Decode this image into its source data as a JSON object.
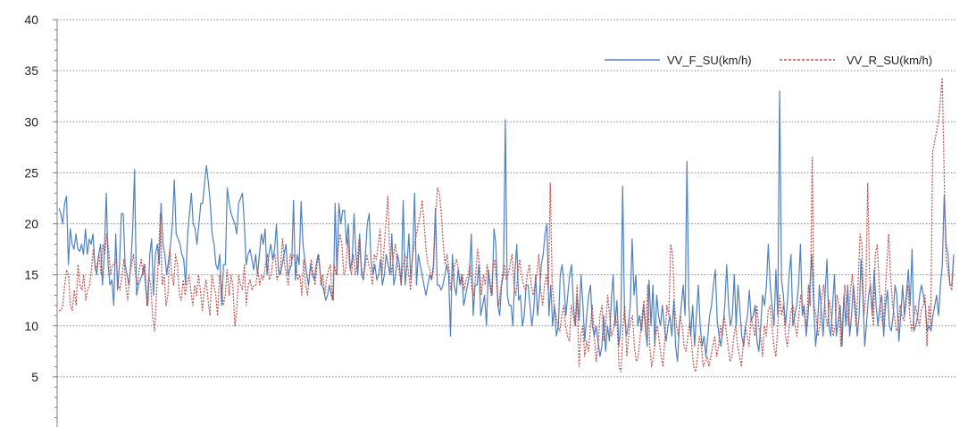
{
  "chart_data": {
    "type": "line",
    "title": "",
    "xlabel": "",
    "ylabel": "",
    "ylim": [
      0,
      40
    ],
    "yticks": [
      5,
      10,
      15,
      20,
      25,
      30,
      35,
      40
    ],
    "grid": "horizontal dotted",
    "legend_position": "top-right",
    "colors": {
      "VV_F_SU": "#4f81bd",
      "VV_R_SU": "#c0504d"
    },
    "series": [
      {
        "name": "VV_F_SU(km/h)",
        "style": "solid",
        "values": [
          21.5,
          21.0,
          20.0,
          22.0,
          22.7,
          16.0,
          19.5,
          18.0,
          17.5,
          19.0,
          17.5,
          17.3,
          18.0,
          17.0,
          19.5,
          17.0,
          18.5,
          18.0,
          19.0,
          16.0,
          15.0,
          17.0,
          18.0,
          14.0,
          17.0,
          23.0,
          16.0,
          14.0,
          14.5,
          12.0,
          19.0,
          13.5,
          16.0,
          21.0,
          21.0,
          16.0,
          15.0,
          14.0,
          16.0,
          19.5,
          25.3,
          13.0,
          14.0,
          14.5,
          15.0,
          16.0,
          13.5,
          12.0,
          17.0,
          18.5,
          13.0,
          17.0,
          18.0,
          16.0,
          22.0,
          18.0,
          17.0,
          15.0,
          16.5,
          18.0,
          20.0,
          24.3,
          19.0,
          18.5,
          18.0,
          17.0,
          16.5,
          14.0,
          19.0,
          21.0,
          23.0,
          20.0,
          19.5,
          18.0,
          20.0,
          22.0,
          22.0,
          24.0,
          25.7,
          24.0,
          22.0,
          19.0,
          18.0,
          16.0,
          15.5,
          17.0,
          12.0,
          16.0,
          16.0,
          23.5,
          22.0,
          21.0,
          20.5,
          20.0,
          19.0,
          22.0,
          22.5,
          23.0,
          20.0,
          16.0,
          17.0,
          17.5,
          16.5,
          15.5,
          17.0,
          15.0,
          17.0,
          19.0,
          18.0,
          19.5,
          15.0,
          17.0,
          18.0,
          16.5,
          17.5,
          20.0,
          15.5,
          15.0,
          16.0,
          17.0,
          18.0,
          15.0,
          15.5,
          16.0,
          22.3,
          14.5,
          17.0,
          16.0,
          22.2,
          18.0,
          16.5,
          15.0,
          14.0,
          16.0,
          15.0,
          14.5,
          16.0,
          17.0,
          15.5,
          14.0,
          13.5,
          12.5,
          13.0,
          14.0,
          13.0,
          12.5,
          22.0,
          15.0,
          22.0,
          20.0,
          21.3,
          21.3,
          18.0,
          20.0,
          15.5,
          16.5,
          21.0,
          17.0,
          15.0,
          19.0,
          15.0,
          14.5,
          17.0,
          20.0,
          21.0,
          16.5,
          15.0,
          16.0,
          14.5,
          15.0,
          16.5,
          14.0,
          15.0,
          17.0,
          16.0,
          15.0,
          19.0,
          14.0,
          15.0,
          17.0,
          16.0,
          14.0,
          22.3,
          14.0,
          16.0,
          19.0,
          14.5,
          17.0,
          23.0,
          14.0,
          17.0,
          16.0,
          15.0,
          14.0,
          13.0,
          14.0,
          15.0,
          14.5,
          16.0,
          21.5,
          14.0,
          14.0,
          13.5,
          14.0,
          15.0,
          16.0,
          15.0,
          9.0,
          17.0,
          14.0,
          13.0,
          15.5,
          14.0,
          15.0,
          12.0,
          13.0,
          14.0,
          15.0,
          19.0,
          11.0,
          14.0,
          14.0,
          16.0,
          11.0,
          12.0,
          13.0,
          10.0,
          15.5,
          14.0,
          13.0,
          19.5,
          18.0,
          12.0,
          11.0,
          14.0,
          15.0,
          30.2,
          13.0,
          12.0,
          12.0,
          10.0,
          15.0,
          18.0,
          12.5,
          13.0,
          10.0,
          11.0,
          14.0,
          14.0,
          12.0,
          10.0,
          11.5,
          15.0,
          11.0,
          13.0,
          16.0,
          17.0,
          19.0,
          20.0,
          11.0,
          14.0,
          10.0,
          12.0,
          9.0,
          10.0,
          15.0,
          16.0,
          14.0,
          11.0,
          13.0,
          15.0,
          16.0,
          12.0,
          10.0,
          13.0,
          10.5,
          15.0,
          12.0,
          8.5,
          11.0,
          13.0,
          14.0,
          10.0,
          9.0,
          10.0,
          8.5,
          7.0,
          8.0,
          11.0,
          7.5,
          10.0,
          8.5,
          12.5,
          15.0,
          10.0,
          12.5,
          8.0,
          10.0,
          23.7,
          11.0,
          9.0,
          10.0,
          12.0,
          18.5,
          13.0,
          15.0,
          10.0,
          11.0,
          9.5,
          12.0,
          10.0,
          8.0,
          14.5,
          10.0,
          14.0,
          8.0,
          13.0,
          11.0,
          10.0,
          12.0,
          10.0,
          8.5,
          10.0,
          11.0,
          9.0,
          12.5,
          8.0,
          6.5,
          10.0,
          12.0,
          14.0,
          11.0,
          26.1,
          12.0,
          9.0,
          12.0,
          8.0,
          11.0,
          14.0,
          10.0,
          8.0,
          9.0,
          7.0,
          9.0,
          11.0,
          12.0,
          14.0,
          15.5,
          10.5,
          9.0,
          8.0,
          10.0,
          12.0,
          16.0,
          12.0,
          10.0,
          11.0,
          15.0,
          10.0,
          14.0,
          11.5,
          9.0,
          8.0,
          10.0,
          11.0,
          13.5,
          10.5,
          11.0,
          12.0,
          8.5,
          7.5,
          10.0,
          13.0,
          12.0,
          14.0,
          18.0,
          14.0,
          12.0,
          10.0,
          15.5,
          11.0,
          33.0,
          14.5,
          13.0,
          10.0,
          12.0,
          15.0,
          17.0,
          10.0,
          11.0,
          12.0,
          14.0,
          18.0,
          11.0,
          12.0,
          9.0,
          11.0,
          14.0,
          17.0,
          12.0,
          8.0,
          10.0,
          14.0,
          11.5,
          9.0,
          13.0,
          16.5,
          10.0,
          9.0,
          12.0,
          15.0,
          9.0,
          10.5,
          12.0,
          8.0,
          13.0,
          10.0,
          14.0,
          9.0,
          11.0,
          14.0,
          12.0,
          9.0,
          11.0,
          16.5,
          13.0,
          8.0,
          10.5,
          13.0,
          14.0,
          11.0,
          15.5,
          12.0,
          10.0,
          12.0,
          13.0,
          9.0,
          12.0,
          13.5,
          10.0,
          9.5,
          11.0,
          14.0,
          13.0,
          8.5,
          11.0,
          14.0,
          11.0,
          13.0,
          15.5,
          12.0,
          17.5,
          9.5,
          10.0,
          11.0,
          13.0,
          14.0,
          13.0,
          12.0,
          9.5,
          10.0,
          9.5,
          11.0,
          12.0,
          13.0,
          11.0,
          14.0,
          16.0,
          22.8,
          18.0,
          17.0,
          14.0,
          14.0,
          17.0
        ]
      },
      {
        "name": "VV_R_SU(km/h)",
        "style": "dashed",
        "values": [
          11.5,
          11.5,
          12.0,
          14.0,
          15.5,
          15.0,
          12.0,
          11.5,
          13.5,
          12.0,
          16.0,
          14.0,
          13.5,
          15.0,
          12.5,
          13.5,
          14.0,
          15.5,
          17.5,
          15.5,
          16.0,
          17.0,
          15.0,
          18.0,
          17.0,
          19.0,
          17.5,
          15.0,
          16.0,
          16.0,
          16.5,
          14.0,
          13.5,
          15.0,
          16.5,
          14.0,
          12.5,
          15.0,
          16.0,
          17.0,
          15.0,
          14.0,
          15.5,
          16.5,
          15.0,
          16.0,
          12.0,
          15.0,
          14.0,
          11.0,
          9.5,
          13.0,
          16.5,
          21.0,
          14.0,
          15.0,
          12.0,
          13.0,
          17.5,
          15.0,
          14.0,
          17.0,
          16.0,
          13.0,
          12.5,
          14.5,
          13.0,
          14.0,
          15.0,
          13.5,
          12.0,
          14.0,
          13.0,
          15.0,
          13.5,
          11.5,
          13.5,
          14.5,
          12.5,
          11.0,
          15.0,
          14.0,
          13.0,
          11.0,
          15.0,
          14.0,
          12.0,
          13.0,
          15.5,
          13.0,
          15.0,
          14.0,
          10.0,
          11.5,
          15.0,
          14.0,
          13.5,
          16.0,
          12.0,
          14.0,
          14.5,
          13.5,
          14.0,
          14.0,
          15.5,
          14.0,
          15.0,
          14.5,
          16.0,
          17.0,
          14.5,
          15.0,
          16.5,
          17.0,
          14.5,
          15.0,
          16.0,
          18.5,
          16.0,
          15.0,
          14.0,
          17.0,
          16.5,
          17.0,
          16.0,
          14.5,
          15.0,
          13.0,
          16.5,
          14.0,
          13.0,
          15.0,
          16.5,
          15.0,
          14.0,
          16.0,
          17.0,
          14.0,
          15.0,
          13.0,
          14.5,
          15.5,
          16.0,
          12.5,
          16.0,
          15.0,
          17.5,
          19.0,
          18.0,
          15.0,
          15.5,
          18.5,
          16.0,
          15.0,
          17.0,
          15.0,
          16.0,
          18.5,
          16.0,
          15.0,
          15.5,
          17.0,
          16.0,
          15.5,
          14.0,
          17.0,
          16.5,
          18.0,
          19.5,
          15.0,
          17.5,
          20.0,
          22.7,
          17.0,
          15.0,
          17.0,
          18.0,
          16.0,
          15.5,
          14.0,
          16.0,
          17.0,
          16.5,
          15.0,
          13.5,
          17.0,
          18.0,
          19.0,
          20.0,
          21.0,
          22.3,
          20.0,
          17.5,
          16.0,
          15.5,
          14.5,
          15.5,
          21.0,
          23.5,
          23.0,
          21.0,
          18.0,
          16.0,
          17.0,
          15.5,
          13.5,
          15.0,
          16.0,
          16.5,
          15.5,
          14.0,
          15.0,
          13.5,
          14.5,
          15.0,
          16.0,
          13.5,
          13.0,
          15.0,
          17.5,
          16.0,
          13.0,
          15.0,
          14.0,
          16.0,
          14.5,
          13.0,
          15.5,
          16.5,
          14.0,
          12.0,
          13.5,
          15.0,
          16.0,
          14.5,
          15.0,
          16.0,
          17.0,
          14.0,
          13.0,
          15.0,
          16.5,
          15.0,
          14.0,
          13.5,
          15.0,
          16.0,
          14.0,
          13.0,
          14.0,
          15.0,
          17.0,
          13.5,
          12.0,
          14.0,
          15.0,
          13.5,
          24.0,
          14.0,
          12.0,
          11.0,
          10.0,
          9.5,
          11.0,
          12.0,
          10.0,
          9.0,
          8.5,
          12.0,
          11.0,
          10.0,
          14.0,
          6.0,
          9.0,
          10.0,
          7.0,
          8.5,
          7.5,
          10.0,
          12.0,
          9.0,
          6.5,
          8.0,
          11.0,
          12.0,
          8.5,
          10.0,
          13.0,
          11.0,
          9.0,
          9.5,
          11.0,
          10.0,
          6.0,
          5.5,
          10.0,
          12.0,
          7.0,
          9.0,
          10.5,
          11.0,
          8.0,
          6.5,
          7.0,
          9.0,
          11.0,
          12.5,
          9.0,
          14.0,
          8.0,
          6.0,
          7.0,
          9.0,
          10.0,
          8.5,
          7.0,
          6.0,
          9.0,
          12.0,
          11.0,
          18.0,
          17.0,
          12.0,
          10.0,
          9.0,
          11.0,
          10.0,
          8.0,
          7.5,
          9.0,
          10.5,
          8.0,
          6.0,
          5.5,
          7.0,
          9.0,
          8.0,
          6.0,
          6.5,
          7.0,
          6.0,
          7.0,
          8.0,
          9.0,
          7.0,
          8.0,
          10.0,
          9.0,
          11.0,
          9.5,
          8.0,
          6.5,
          7.0,
          9.0,
          10.0,
          8.0,
          7.0,
          6.0,
          8.5,
          10.0,
          9.0,
          8.0,
          11.0,
          10.0,
          9.0,
          12.0,
          10.0,
          9.0,
          7.0,
          10.0,
          9.0,
          11.5,
          12.0,
          10.0,
          8.0,
          7.0,
          10.0,
          13.0,
          11.0,
          12.0,
          9.0,
          8.0,
          10.0,
          11.5,
          12.0,
          10.0,
          9.0,
          11.0,
          13.0,
          12.0,
          11.0,
          10.0,
          14.0,
          12.0,
          26.5,
          12.0,
          11.0,
          9.0,
          10.0,
          13.0,
          14.0,
          11.0,
          10.0,
          12.5,
          11.0,
          9.0,
          10.0,
          13.0,
          12.0,
          8.0,
          11.0,
          14.0,
          12.0,
          10.0,
          13.5,
          15.0,
          12.0,
          10.0,
          14.0,
          19.0,
          18.0,
          11.0,
          13.0,
          24.0,
          15.0,
          12.0,
          10.0,
          17.0,
          18.0,
          14.0,
          11.0,
          10.0,
          12.5,
          16.0,
          19.0,
          15.0,
          12.0,
          11.0,
          9.5,
          10.0,
          12.0,
          11.0,
          10.5,
          12.0,
          14.0,
          11.0,
          9.5,
          10.5,
          12.0,
          11.0,
          10.0,
          11.5,
          12.0,
          13.0,
          8.0,
          12.0,
          10.0,
          27.0,
          28.0,
          29.0,
          30.0,
          32.0,
          34.3,
          25.0,
          16.5,
          15.5,
          14.0,
          13.5,
          16.5
        ]
      }
    ]
  }
}
